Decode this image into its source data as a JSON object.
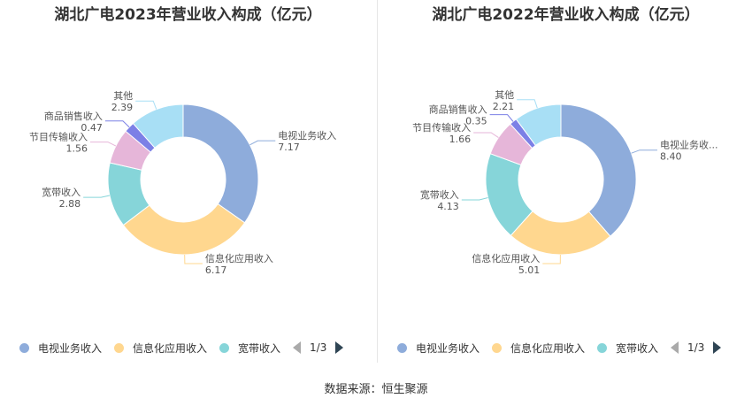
{
  "source_note": "数据来源：恒生聚源",
  "legend": {
    "items": [
      {
        "label": "电视业务收入",
        "color": "#8EACDB"
      },
      {
        "label": "信息化应用收入",
        "color": "#FFD78F"
      },
      {
        "label": "宽带收入",
        "color": "#86D5D9"
      }
    ],
    "page": "1/3"
  },
  "chart_data": [
    {
      "type": "pie",
      "title": "湖北广电2023年营业收入构成（亿元）",
      "slices": [
        {
          "label": "电视业务收入",
          "value": 7.17,
          "value_label": "7.17",
          "color": "#8EACDB"
        },
        {
          "label": "信息化应用收入",
          "value": 6.17,
          "value_label": "6.17",
          "color": "#FFD78F"
        },
        {
          "label": "宽带收入",
          "value": 2.88,
          "value_label": "2.88",
          "color": "#86D5D9"
        },
        {
          "label": "节目传输收入",
          "value": 1.56,
          "value_label": "1.56",
          "color": "#E6B6D9"
        },
        {
          "label": "商品销售收入",
          "value": 0.47,
          "value_label": "0.47",
          "color": "#7C80E6"
        },
        {
          "label": "其他",
          "value": 2.39,
          "value_label": "2.39",
          "color": "#A8DFF5"
        }
      ]
    },
    {
      "type": "pie",
      "title": "湖北广电2022年营业收入构成（亿元）",
      "slices": [
        {
          "label": "电视业务收...",
          "value": 8.4,
          "value_label": "8.40",
          "color": "#8EACDB"
        },
        {
          "label": "信息化应用收入",
          "value": 5.01,
          "value_label": "5.01",
          "color": "#FFD78F"
        },
        {
          "label": "宽带收入",
          "value": 4.13,
          "value_label": "4.13",
          "color": "#86D5D9"
        },
        {
          "label": "节目传输收入",
          "value": 1.66,
          "value_label": "1.66",
          "color": "#E6B6D9"
        },
        {
          "label": "商品销售收入",
          "value": 0.35,
          "value_label": "0.35",
          "color": "#7C80E6"
        },
        {
          "label": "其他",
          "value": 2.21,
          "value_label": "2.21",
          "color": "#A8DFF5"
        }
      ]
    }
  ]
}
